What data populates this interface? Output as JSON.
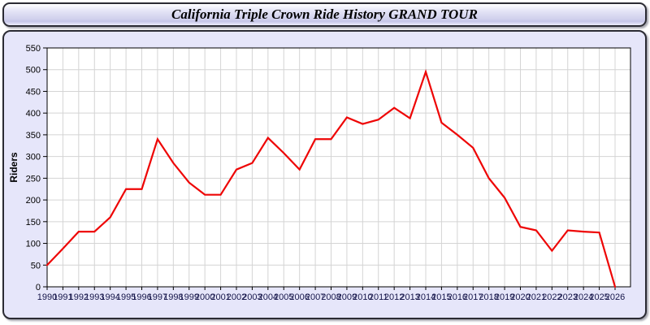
{
  "page": {
    "title": "California Triple Crown Ride History GRAND TOUR"
  },
  "chart_data": {
    "type": "line",
    "title": "California Triple Crown Ride History GRAND TOUR",
    "xlabel": "",
    "ylabel": "Riders",
    "x": [
      1990,
      1991,
      1992,
      1993,
      1994,
      1995,
      1996,
      1997,
      1998,
      1999,
      2000,
      2001,
      2002,
      2003,
      2004,
      2005,
      2006,
      2007,
      2008,
      2009,
      2010,
      2011,
      2012,
      2013,
      2014,
      2015,
      2016,
      2017,
      2018,
      2019,
      2020,
      2021,
      2022,
      2023,
      2024,
      2025,
      2026
    ],
    "series": [
      {
        "name": "Riders",
        "values": [
          50,
          88,
          127,
          127,
          160,
          225,
          225,
          340,
          285,
          240,
          212,
          212,
          270,
          285,
          343,
          308,
          270,
          340,
          340,
          390,
          375,
          385,
          412,
          388,
          495,
          378,
          350,
          320,
          250,
          205,
          138,
          130,
          83,
          130,
          127,
          125,
          0
        ]
      }
    ],
    "ylim": [
      0,
      550
    ],
    "ytick_step": 50,
    "grid": true,
    "legend_position": "none",
    "colors": {
      "line": "#ee0505",
      "plot_background": "#ffffff",
      "panel_background": "#e6e6fa",
      "grid": "#d4d4d4",
      "axis_border": "#000000",
      "ytick_label": "#000000",
      "xtick_label": "#16164a",
      "ylabel": "#000000"
    }
  }
}
